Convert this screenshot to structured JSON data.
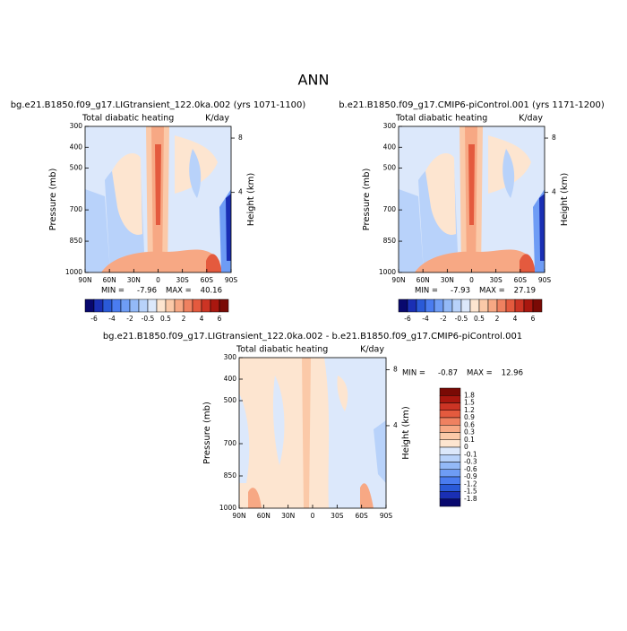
{
  "title": "ANN",
  "chart_data": [
    {
      "type": "contour",
      "title": "bg.e21.B1850.f09_g17.LIGtransient_122.0ka.002 (yrs 1071-1100)",
      "left_label": "Total diabatic heating",
      "right_label": "K/day",
      "ylabel": "Pressure (mb)",
      "y2label": "Height (km)",
      "xlim": [
        90,
        -90
      ],
      "xticks": [
        {
          "value": 90,
          "label": "90N"
        },
        {
          "value": 60,
          "label": "60N"
        },
        {
          "value": 30,
          "label": "30N"
        },
        0,
        {
          "value": -30,
          "label": "30S"
        },
        {
          "value": -60,
          "label": "60S"
        },
        {
          "value": -90,
          "label": "90S"
        }
      ],
      "ylim": [
        1000,
        300
      ],
      "yticks": [
        300,
        400,
        500,
        700,
        850,
        1000
      ],
      "y2ticks": [
        8,
        4
      ],
      "min_text": "MIN =",
      "min": -7.96,
      "max_text": "MAX =",
      "max": 40.16,
      "colorbar": {
        "labels": [
          -6,
          -4,
          -2,
          -0.5,
          0.5,
          2,
          4,
          6
        ],
        "colors": [
          "#08086e",
          "#1a2fb4",
          "#2a5ad8",
          "#4a7cf0",
          "#6e9cf5",
          "#93b9f7",
          "#b8d2fa",
          "#dce8fb",
          "#fde5d0",
          "#fbc9a8",
          "#f7a884",
          "#ef8160",
          "#e45a3e",
          "#cc3424",
          "#a9170f",
          "#7a0a05"
        ]
      }
    },
    {
      "type": "contour",
      "title": "b.e21.B1850.f09_g17.CMIP6-piControl.001 (yrs 1171-1200)",
      "left_label": "Total diabatic heating",
      "right_label": "K/day",
      "ylabel": "Pressure (mb)",
      "y2label": "Height (km)",
      "xlim": [
        90,
        -90
      ],
      "xticks": [
        {
          "value": 90,
          "label": "90N"
        },
        {
          "value": 60,
          "label": "60N"
        },
        {
          "value": 30,
          "label": "30N"
        },
        0,
        {
          "value": -30,
          "label": "30S"
        },
        {
          "value": -60,
          "label": "60S"
        },
        {
          "value": -90,
          "label": "90S"
        }
      ],
      "ylim": [
        1000,
        300
      ],
      "yticks": [
        300,
        400,
        500,
        700,
        850,
        1000
      ],
      "y2ticks": [
        8,
        4
      ],
      "min_text": "MIN =",
      "min": -7.93,
      "max_text": "MAX =",
      "max": 27.19,
      "colorbar": {
        "labels": [
          -6,
          -4,
          -2,
          -0.5,
          0.5,
          2,
          4,
          6
        ],
        "colors": [
          "#08086e",
          "#1a2fb4",
          "#2a5ad8",
          "#4a7cf0",
          "#6e9cf5",
          "#93b9f7",
          "#b8d2fa",
          "#dce8fb",
          "#fde5d0",
          "#fbc9a8",
          "#f7a884",
          "#ef8160",
          "#e45a3e",
          "#cc3424",
          "#a9170f",
          "#7a0a05"
        ]
      }
    },
    {
      "type": "contour",
      "title": "bg.e21.B1850.f09_g17.LIGtransient_122.0ka.002 - b.e21.B1850.f09_g17.CMIP6-piControl.001",
      "left_label": "Total diabatic heating",
      "right_label": "K/day",
      "ylabel": "Pressure (mb)",
      "y2label": "Height (km)",
      "xlim": [
        90,
        -90
      ],
      "xticks": [
        {
          "value": 90,
          "label": "90N"
        },
        {
          "value": 60,
          "label": "60N"
        },
        {
          "value": 30,
          "label": "30N"
        },
        0,
        {
          "value": -30,
          "label": "30S"
        },
        {
          "value": -60,
          "label": "60S"
        },
        {
          "value": -90,
          "label": "90S"
        }
      ],
      "ylim": [
        1000,
        300
      ],
      "yticks": [
        300,
        400,
        500,
        700,
        850,
        1000
      ],
      "y2ticks": [
        8,
        4
      ],
      "min_text": "MIN =",
      "min": -0.87,
      "max_text": "MAX =",
      "max": 12.96,
      "colorbar": {
        "labels": [
          1.8,
          1.5,
          1.2,
          0.9,
          0.6,
          0.3,
          0.1,
          0,
          -0.1,
          -0.3,
          -0.6,
          -0.9,
          -1.2,
          -1.5,
          -1.8
        ],
        "colors": [
          "#7a0a05",
          "#a9170f",
          "#cc3424",
          "#e45a3e",
          "#ef8160",
          "#f7a884",
          "#fbc9a8",
          "#fde5d0",
          "#dce8fb",
          "#b8d2fa",
          "#93b9f7",
          "#6e9cf5",
          "#4a7cf0",
          "#2a5ad8",
          "#1a2fb4",
          "#08086e"
        ]
      }
    }
  ]
}
